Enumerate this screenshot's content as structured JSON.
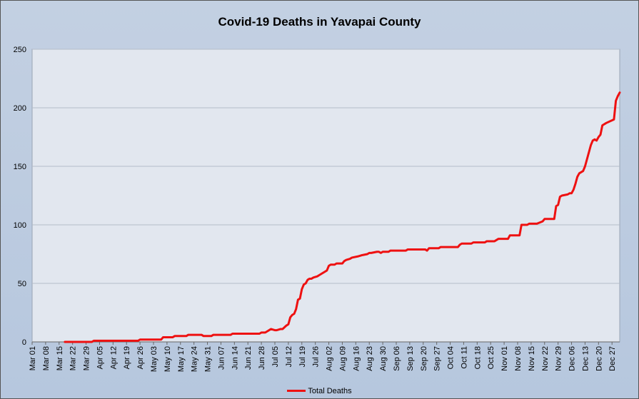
{
  "chart_data": {
    "type": "line",
    "title": "Covid-19 Deaths in Yavapai County",
    "xlabel": "",
    "ylabel": "",
    "ylim": [
      0,
      250
    ],
    "yticks": [
      0,
      50,
      100,
      150,
      200,
      250
    ],
    "xlim": [
      "2020-03-01",
      "2020-12-31"
    ],
    "xticks": [
      "Mar 01",
      "Mar 08",
      "Mar 15",
      "Mar 22",
      "Mar 29",
      "Apr 05",
      "Apr 12",
      "Apr 19",
      "Apr 26",
      "May 03",
      "May 10",
      "May 17",
      "May 24",
      "May 31",
      "Jun 07",
      "Jun 14",
      "Jun 21",
      "Jun 28",
      "Jul 05",
      "Jul 12",
      "Jul 19",
      "Jul 26",
      "Aug 02",
      "Aug 09",
      "Aug 16",
      "Aug 23",
      "Aug 30",
      "Sep 06",
      "Sep 13",
      "Sep 20",
      "Sep 27",
      "Oct 04",
      "Oct 11",
      "Oct 18",
      "Oct 25",
      "Nov 01",
      "Nov 08",
      "Nov 15",
      "Nov 22",
      "Nov 29",
      "Dec 06",
      "Dec 13",
      "Dec 20",
      "Dec 27"
    ],
    "grid": "horizontal",
    "legend_position": "bottom",
    "series": [
      {
        "name": "Total Deaths",
        "color": "#ee1111",
        "x": [
          "2020-03-18",
          "2020-04-01",
          "2020-04-02",
          "2020-04-25",
          "2020-04-26",
          "2020-05-07",
          "2020-05-08",
          "2020-05-13",
          "2020-05-14",
          "2020-05-20",
          "2020-05-21",
          "2020-05-28",
          "2020-05-29",
          "2020-06-02",
          "2020-06-03",
          "2020-06-12",
          "2020-06-13",
          "2020-06-27",
          "2020-06-28",
          "2020-06-30",
          "2020-07-01",
          "2020-07-03",
          "2020-07-05",
          "2020-07-06",
          "2020-07-08",
          "2020-07-09",
          "2020-07-11",
          "2020-07-12",
          "2020-07-13",
          "2020-07-14",
          "2020-07-15",
          "2020-07-16",
          "2020-07-17",
          "2020-07-18",
          "2020-07-19",
          "2020-07-20",
          "2020-07-21",
          "2020-07-22",
          "2020-07-23",
          "2020-07-24",
          "2020-07-25",
          "2020-07-27",
          "2020-07-28",
          "2020-07-29",
          "2020-07-31",
          "2020-08-01",
          "2020-08-02",
          "2020-08-03",
          "2020-08-05",
          "2020-08-06",
          "2020-08-09",
          "2020-08-10",
          "2020-08-11",
          "2020-08-13",
          "2020-08-14",
          "2020-08-17",
          "2020-08-19",
          "2020-08-22",
          "2020-08-23",
          "2020-08-24",
          "2020-08-27",
          "2020-08-28",
          "2020-08-29",
          "2020-08-30",
          "2020-09-02",
          "2020-09-03",
          "2020-09-11",
          "2020-09-12",
          "2020-09-21",
          "2020-09-22",
          "2020-09-23",
          "2020-09-28",
          "2020-09-29",
          "2020-10-08",
          "2020-10-09",
          "2020-10-10",
          "2020-10-15",
          "2020-10-16",
          "2020-10-22",
          "2020-10-23",
          "2020-10-27",
          "2020-10-28",
          "2020-10-29",
          "2020-11-03",
          "2020-11-04",
          "2020-11-09",
          "2020-11-10",
          "2020-11-13",
          "2020-11-14",
          "2020-11-18",
          "2020-11-21",
          "2020-11-22",
          "2020-11-27",
          "2020-11-28",
          "2020-11-29",
          "2020-11-30",
          "2020-12-01",
          "2020-12-04",
          "2020-12-05",
          "2020-12-06",
          "2020-12-07",
          "2020-12-08",
          "2020-12-09",
          "2020-12-10",
          "2020-12-12",
          "2020-12-13",
          "2020-12-16",
          "2020-12-17",
          "2020-12-18",
          "2020-12-19",
          "2020-12-20",
          "2020-12-21",
          "2020-12-22",
          "2020-12-24",
          "2020-12-28",
          "2020-12-29",
          "2020-12-30",
          "2020-12-31"
        ],
        "values": [
          0,
          0,
          1,
          1,
          2,
          2,
          4,
          4,
          5,
          5,
          6,
          6,
          5,
          5,
          6,
          6,
          7,
          7,
          8,
          8,
          9,
          11,
          10,
          10,
          11,
          11,
          14,
          15,
          21,
          23,
          24,
          28,
          36,
          37,
          45,
          49,
          50,
          53,
          54,
          54,
          55,
          56,
          57,
          58,
          60,
          61,
          65,
          66,
          66,
          67,
          67,
          69,
          70,
          71,
          72,
          73,
          74,
          75,
          76,
          76,
          77,
          77,
          76,
          77,
          77,
          78,
          78,
          79,
          79,
          78,
          80,
          80,
          81,
          81,
          83,
          84,
          84,
          85,
          85,
          86,
          86,
          87,
          88,
          88,
          91,
          91,
          100,
          100,
          101,
          101,
          103,
          105,
          105,
          116,
          117,
          124,
          125,
          126,
          127,
          127,
          130,
          135,
          141,
          144,
          146,
          150,
          168,
          172,
          173,
          172,
          175,
          177,
          185,
          187,
          190,
          206,
          210,
          213
        ]
      }
    ]
  }
}
